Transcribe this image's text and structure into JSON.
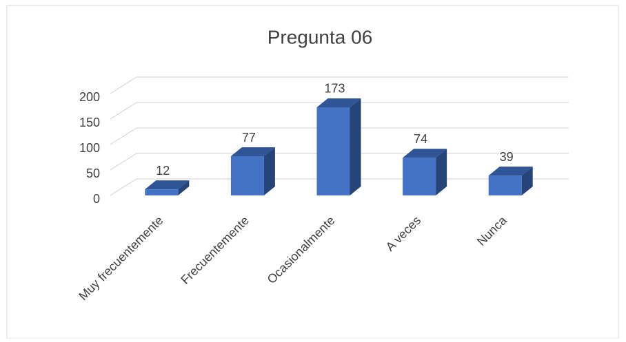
{
  "chart_data": {
    "type": "bar3d",
    "title": "Pregunta 06",
    "categories": [
      "Muy frecuentemente",
      "Frecuentemente",
      "Ocasionalmente",
      "A veces",
      "Nunca"
    ],
    "values": [
      12,
      77,
      173,
      74,
      39
    ],
    "color": "#4472c4",
    "ylim": [
      0,
      200
    ],
    "yticks": [
      0,
      50,
      100,
      150,
      200
    ],
    "grid": true
  }
}
